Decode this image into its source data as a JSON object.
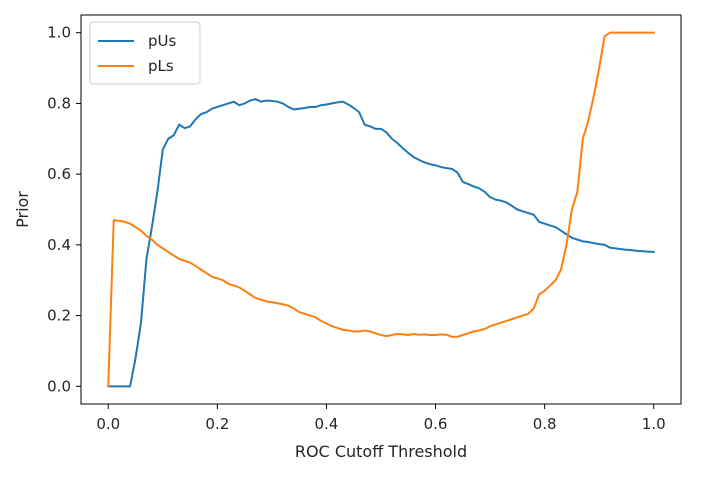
{
  "chart_data": {
    "type": "line",
    "title": "",
    "xlabel": "ROC Cutoff Threshold",
    "ylabel": "Prior",
    "xlim": [
      -0.05,
      1.05
    ],
    "ylim": [
      -0.05,
      1.05
    ],
    "xticks": [
      0.0,
      0.2,
      0.4,
      0.6,
      0.8,
      1.0
    ],
    "xtick_labels": [
      "0.0",
      "0.2",
      "0.4",
      "0.6",
      "0.8",
      "1.0"
    ],
    "yticks": [
      0.0,
      0.2,
      0.4,
      0.6,
      0.8,
      1.0
    ],
    "ytick_labels": [
      "0.0",
      "0.2",
      "0.4",
      "0.6",
      "0.8",
      "1.0"
    ],
    "grid": false,
    "legend_position": "top-left",
    "series": [
      {
        "name": "pUs",
        "color": "#1f77b4",
        "points": [
          [
            0.0,
            0.0
          ],
          [
            0.01,
            0.0
          ],
          [
            0.02,
            0.0
          ],
          [
            0.03,
            0.0
          ],
          [
            0.04,
            0.0
          ],
          [
            0.05,
            0.08
          ],
          [
            0.06,
            0.18
          ],
          [
            0.07,
            0.36
          ],
          [
            0.08,
            0.45
          ],
          [
            0.09,
            0.55
          ],
          [
            0.1,
            0.67
          ],
          [
            0.11,
            0.7
          ],
          [
            0.12,
            0.71
          ],
          [
            0.13,
            0.74
          ],
          [
            0.14,
            0.73
          ],
          [
            0.15,
            0.735
          ],
          [
            0.16,
            0.755
          ],
          [
            0.17,
            0.77
          ],
          [
            0.18,
            0.775
          ],
          [
            0.19,
            0.785
          ],
          [
            0.2,
            0.79
          ],
          [
            0.21,
            0.795
          ],
          [
            0.22,
            0.8
          ],
          [
            0.23,
            0.805
          ],
          [
            0.24,
            0.795
          ],
          [
            0.25,
            0.8
          ],
          [
            0.26,
            0.808
          ],
          [
            0.27,
            0.812
          ],
          [
            0.28,
            0.805
          ],
          [
            0.29,
            0.808
          ],
          [
            0.3,
            0.807
          ],
          [
            0.31,
            0.805
          ],
          [
            0.32,
            0.8
          ],
          [
            0.33,
            0.79
          ],
          [
            0.34,
            0.783
          ],
          [
            0.35,
            0.785
          ],
          [
            0.36,
            0.787
          ],
          [
            0.37,
            0.79
          ],
          [
            0.38,
            0.79
          ],
          [
            0.39,
            0.795
          ],
          [
            0.4,
            0.797
          ],
          [
            0.41,
            0.8
          ],
          [
            0.42,
            0.803
          ],
          [
            0.43,
            0.805
          ],
          [
            0.44,
            0.797
          ],
          [
            0.45,
            0.787
          ],
          [
            0.46,
            0.775
          ],
          [
            0.47,
            0.74
          ],
          [
            0.48,
            0.735
          ],
          [
            0.49,
            0.728
          ],
          [
            0.5,
            0.728
          ],
          [
            0.51,
            0.718
          ],
          [
            0.52,
            0.7
          ],
          [
            0.53,
            0.688
          ],
          [
            0.54,
            0.673
          ],
          [
            0.55,
            0.66
          ],
          [
            0.56,
            0.648
          ],
          [
            0.57,
            0.64
          ],
          [
            0.58,
            0.633
          ],
          [
            0.59,
            0.628
          ],
          [
            0.6,
            0.625
          ],
          [
            0.61,
            0.62
          ],
          [
            0.62,
            0.617
          ],
          [
            0.63,
            0.615
          ],
          [
            0.64,
            0.605
          ],
          [
            0.65,
            0.578
          ],
          [
            0.66,
            0.572
          ],
          [
            0.67,
            0.565
          ],
          [
            0.68,
            0.56
          ],
          [
            0.69,
            0.55
          ],
          [
            0.7,
            0.535
          ],
          [
            0.71,
            0.528
          ],
          [
            0.72,
            0.525
          ],
          [
            0.73,
            0.52
          ],
          [
            0.74,
            0.51
          ],
          [
            0.75,
            0.5
          ],
          [
            0.76,
            0.495
          ],
          [
            0.77,
            0.49
          ],
          [
            0.78,
            0.485
          ],
          [
            0.79,
            0.465
          ],
          [
            0.8,
            0.46
          ],
          [
            0.81,
            0.455
          ],
          [
            0.82,
            0.45
          ],
          [
            0.83,
            0.44
          ],
          [
            0.84,
            0.43
          ],
          [
            0.85,
            0.42
          ],
          [
            0.86,
            0.415
          ],
          [
            0.87,
            0.41
          ],
          [
            0.88,
            0.408
          ],
          [
            0.89,
            0.405
          ],
          [
            0.9,
            0.402
          ],
          [
            0.91,
            0.4
          ],
          [
            0.92,
            0.392
          ],
          [
            0.93,
            0.39
          ],
          [
            0.94,
            0.388
          ],
          [
            0.95,
            0.386
          ],
          [
            0.96,
            0.385
          ],
          [
            0.97,
            0.383
          ],
          [
            0.98,
            0.382
          ],
          [
            0.99,
            0.381
          ],
          [
            1.0,
            0.38
          ]
        ]
      },
      {
        "name": "pLs",
        "color": "#ff7f0e",
        "points": [
          [
            0.0,
            0.0
          ],
          [
            0.01,
            0.47
          ],
          [
            0.02,
            0.468
          ],
          [
            0.03,
            0.465
          ],
          [
            0.04,
            0.46
          ],
          [
            0.05,
            0.45
          ],
          [
            0.06,
            0.44
          ],
          [
            0.07,
            0.425
          ],
          [
            0.08,
            0.415
          ],
          [
            0.09,
            0.4
          ],
          [
            0.1,
            0.39
          ],
          [
            0.11,
            0.38
          ],
          [
            0.12,
            0.37
          ],
          [
            0.13,
            0.36
          ],
          [
            0.14,
            0.355
          ],
          [
            0.15,
            0.35
          ],
          [
            0.16,
            0.34
          ],
          [
            0.17,
            0.33
          ],
          [
            0.18,
            0.32
          ],
          [
            0.19,
            0.31
          ],
          [
            0.2,
            0.305
          ],
          [
            0.21,
            0.3
          ],
          [
            0.22,
            0.29
          ],
          [
            0.23,
            0.285
          ],
          [
            0.24,
            0.28
          ],
          [
            0.25,
            0.27
          ],
          [
            0.26,
            0.26
          ],
          [
            0.27,
            0.25
          ],
          [
            0.28,
            0.245
          ],
          [
            0.29,
            0.24
          ],
          [
            0.3,
            0.238
          ],
          [
            0.31,
            0.235
          ],
          [
            0.32,
            0.232
          ],
          [
            0.33,
            0.228
          ],
          [
            0.34,
            0.22
          ],
          [
            0.35,
            0.21
          ],
          [
            0.36,
            0.205
          ],
          [
            0.37,
            0.2
          ],
          [
            0.38,
            0.195
          ],
          [
            0.39,
            0.185
          ],
          [
            0.4,
            0.178
          ],
          [
            0.41,
            0.17
          ],
          [
            0.42,
            0.165
          ],
          [
            0.43,
            0.16
          ],
          [
            0.44,
            0.158
          ],
          [
            0.45,
            0.155
          ],
          [
            0.46,
            0.155
          ],
          [
            0.47,
            0.158
          ],
          [
            0.48,
            0.155
          ],
          [
            0.49,
            0.15
          ],
          [
            0.5,
            0.145
          ],
          [
            0.51,
            0.142
          ],
          [
            0.52,
            0.145
          ],
          [
            0.53,
            0.148
          ],
          [
            0.54,
            0.147
          ],
          [
            0.55,
            0.145
          ],
          [
            0.56,
            0.148
          ],
          [
            0.57,
            0.146
          ],
          [
            0.58,
            0.147
          ],
          [
            0.59,
            0.145
          ],
          [
            0.6,
            0.145
          ],
          [
            0.61,
            0.147
          ],
          [
            0.62,
            0.146
          ],
          [
            0.63,
            0.14
          ],
          [
            0.64,
            0.14
          ],
          [
            0.65,
            0.145
          ],
          [
            0.66,
            0.15
          ],
          [
            0.67,
            0.155
          ],
          [
            0.68,
            0.158
          ],
          [
            0.69,
            0.162
          ],
          [
            0.7,
            0.17
          ],
          [
            0.71,
            0.175
          ],
          [
            0.72,
            0.18
          ],
          [
            0.73,
            0.185
          ],
          [
            0.74,
            0.19
          ],
          [
            0.75,
            0.195
          ],
          [
            0.76,
            0.2
          ],
          [
            0.77,
            0.205
          ],
          [
            0.78,
            0.22
          ],
          [
            0.79,
            0.26
          ],
          [
            0.8,
            0.27
          ],
          [
            0.81,
            0.285
          ],
          [
            0.82,
            0.3
          ],
          [
            0.83,
            0.33
          ],
          [
            0.84,
            0.4
          ],
          [
            0.85,
            0.5
          ],
          [
            0.86,
            0.55
          ],
          [
            0.87,
            0.7
          ],
          [
            0.88,
            0.75
          ],
          [
            0.89,
            0.82
          ],
          [
            0.9,
            0.9
          ],
          [
            0.91,
            0.99
          ],
          [
            0.92,
            1.0
          ],
          [
            0.93,
            1.0
          ],
          [
            0.94,
            1.0
          ],
          [
            0.95,
            1.0
          ],
          [
            0.96,
            1.0
          ],
          [
            0.97,
            1.0
          ],
          [
            0.98,
            1.0
          ],
          [
            0.99,
            1.0
          ],
          [
            1.0,
            1.0
          ]
        ]
      }
    ]
  }
}
